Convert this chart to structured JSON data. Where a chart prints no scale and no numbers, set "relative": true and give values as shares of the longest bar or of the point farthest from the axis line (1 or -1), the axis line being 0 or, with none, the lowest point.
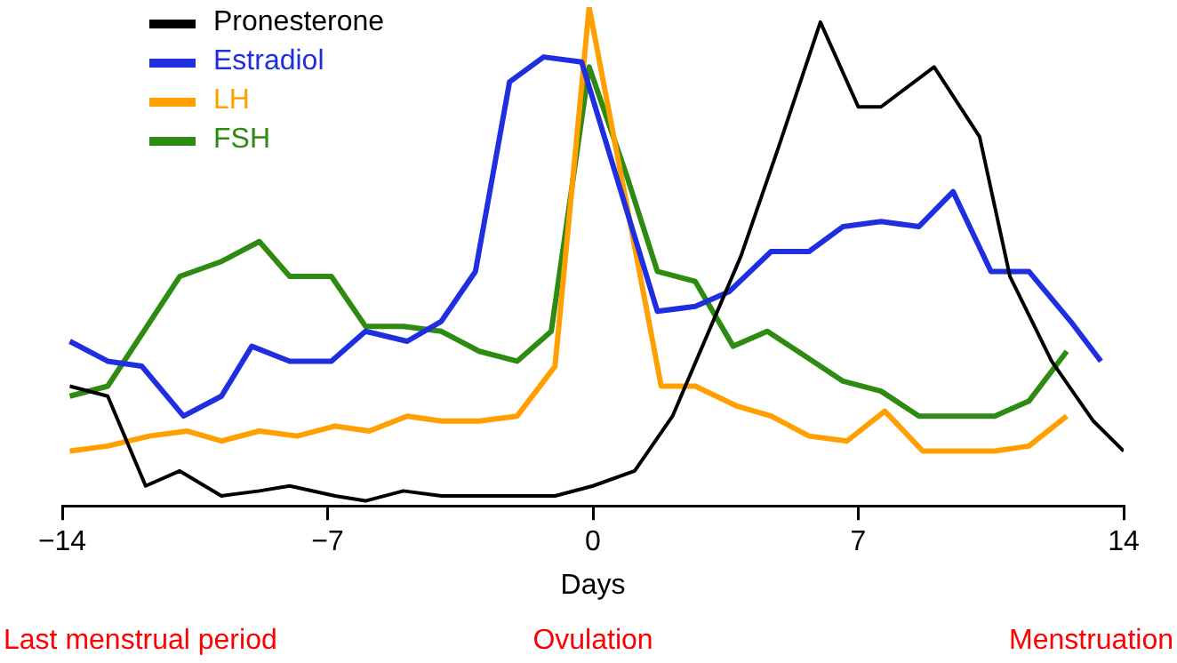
{
  "chart_data": {
    "type": "line",
    "relative": true,
    "xlabel": "Days",
    "xlim": [
      -14,
      14
    ],
    "xticks": [
      {
        "value": -14,
        "label": "−14"
      },
      {
        "value": -7,
        "label": "−7"
      },
      0,
      7,
      14
    ],
    "grid": false,
    "legend": "top left",
    "marker": "none",
    "line_style": "solid",
    "annotations": [
      "Last menstrual period",
      "Ovulation",
      "Menstruation"
    ],
    "series": [
      {
        "name": "Pronesterone",
        "color": "#000000",
        "x": [
          -13.8,
          -12.8,
          -11.8,
          -10.9,
          -9.8,
          -8.8,
          -8,
          -6.8,
          -6,
          -5,
          -4,
          -2.9,
          -2,
          -1,
          0,
          1.1,
          2.1,
          3.9,
          4.9,
          6,
          7,
          7.6,
          9,
          10.2,
          11,
          12.1,
          13.2,
          14
        ],
        "values": [
          0.24,
          0.22,
          0.04,
          0.07,
          0.02,
          0.03,
          0.04,
          0.02,
          0.01,
          0.03,
          0.02,
          0.02,
          0.02,
          0.02,
          0.04,
          0.07,
          0.18,
          0.5,
          0.72,
          0.97,
          0.8,
          0.8,
          0.88,
          0.74,
          0.46,
          0.29,
          0.17,
          0.11
        ]
      },
      {
        "name": "Estradiol",
        "color": "#1f2fe0",
        "x": [
          -13.8,
          -12.8,
          -11.9,
          -10.8,
          -9.8,
          -9,
          -8,
          -6.9,
          -6,
          -4.9,
          -4,
          -3.1,
          -2.2,
          -1.3,
          -0.3,
          1.7,
          2.7,
          3.6,
          4.7,
          5.7,
          6.6,
          7.6,
          8.6,
          9.5,
          10.5,
          11.5,
          12.6,
          13.4
        ],
        "values": [
          0.33,
          0.29,
          0.28,
          0.18,
          0.22,
          0.32,
          0.29,
          0.29,
          0.35,
          0.33,
          0.37,
          0.47,
          0.85,
          0.9,
          0.89,
          0.39,
          0.4,
          0.43,
          0.51,
          0.51,
          0.56,
          0.57,
          0.56,
          0.63,
          0.47,
          0.47,
          0.37,
          0.29
        ]
      },
      {
        "name": "LH",
        "color": "#ff9f00",
        "x": [
          -13.8,
          -12.8,
          -11.7,
          -10.7,
          -9.8,
          -8.8,
          -7.8,
          -6.8,
          -5.9,
          -4.9,
          -4,
          -3,
          -2,
          -1,
          -0.1,
          1.8,
          2.7,
          3.8,
          4.7,
          5.7,
          6.7,
          7.7,
          8.7,
          9.6,
          10.6,
          11.5,
          12.5
        ],
        "values": [
          0.11,
          0.12,
          0.14,
          0.15,
          0.13,
          0.15,
          0.14,
          0.16,
          0.15,
          0.18,
          0.17,
          0.17,
          0.18,
          0.28,
          1,
          0.24,
          0.24,
          0.2,
          0.18,
          0.14,
          0.13,
          0.19,
          0.11,
          0.11,
          0.11,
          0.12,
          0.18
        ]
      },
      {
        "name": "FSH",
        "color": "#2e8b12",
        "x": [
          -13.8,
          -12.8,
          -10.9,
          -9.8,
          -8.8,
          -8,
          -6.9,
          -6,
          -5,
          -4,
          -3,
          -2,
          -1.1,
          -0.1,
          0.9,
          1.7,
          2.7,
          3.7,
          4.6,
          5.6,
          6.6,
          7.6,
          8.6,
          9.6,
          10.6,
          11.5,
          12.5
        ],
        "values": [
          0.22,
          0.24,
          0.46,
          0.49,
          0.53,
          0.46,
          0.46,
          0.36,
          0.36,
          0.35,
          0.31,
          0.29,
          0.35,
          0.88,
          0.66,
          0.47,
          0.45,
          0.32,
          0.35,
          0.3,
          0.25,
          0.23,
          0.18,
          0.18,
          0.18,
          0.21,
          0.31
        ]
      }
    ]
  }
}
